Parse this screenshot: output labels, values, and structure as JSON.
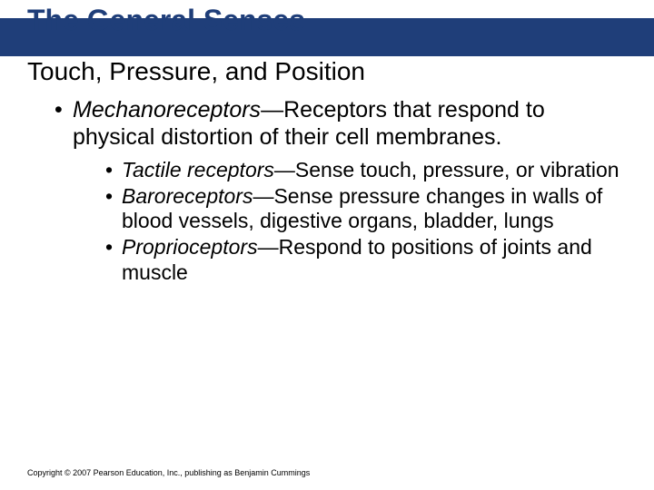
{
  "colors": {
    "title_text": "#1f3e79",
    "title_band": "#1f3e79",
    "subtitle": "#000000",
    "body": "#000000",
    "footer": "#000000",
    "background": "#ffffff"
  },
  "fonts": {
    "title_size": 32,
    "subtitle_size": 28,
    "bullet_l1_size": 25,
    "bullet_l2_size": 23,
    "footer_size": 9
  },
  "title": "The General Senses",
  "subtitle": "Touch, Pressure, and Position",
  "bullets": [
    {
      "italic_term": "Mechanoreceptors",
      "rest": "—Receptors that respond to physical distortion of their cell membranes.",
      "children": [
        {
          "italic_term": "Tactile receptors",
          "rest": "—Sense touch, pressure, or vibration"
        },
        {
          "italic_term": "Baroreceptors",
          "rest": "—Sense pressure changes in walls of blood vessels, digestive organs, bladder, lungs"
        },
        {
          "italic_term": "Proprioceptors",
          "rest": "—Respond to positions of joints and muscle"
        }
      ]
    }
  ],
  "footer": "Copyright © 2007 Pearson Education, Inc., publishing as Benjamin Cummings"
}
